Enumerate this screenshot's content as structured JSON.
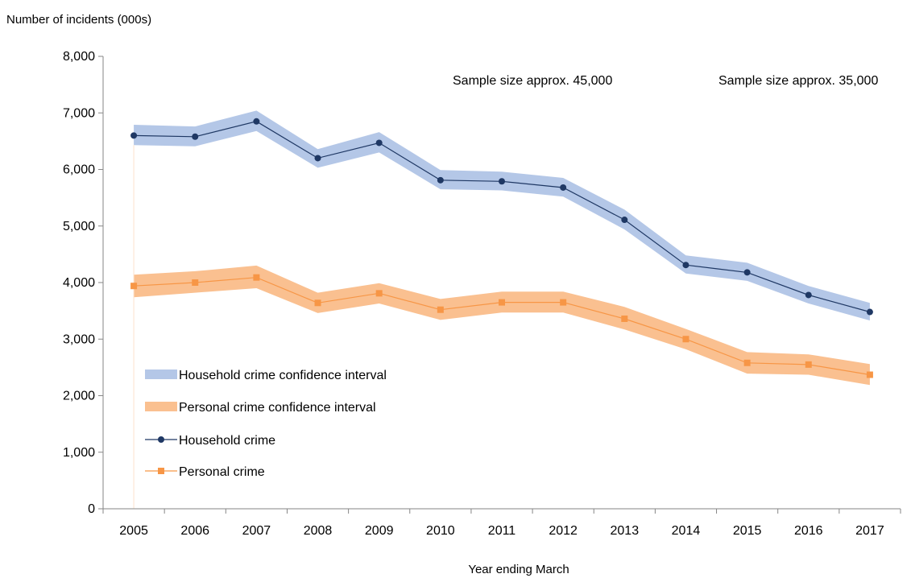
{
  "chart_data": {
    "type": "line",
    "ylabel": "Number of incidents (000s)",
    "xlabel": "Year ending  March",
    "ylim": [
      0,
      8000
    ],
    "yticks": [
      0,
      1000,
      2000,
      3000,
      4000,
      5000,
      6000,
      7000,
      8000
    ],
    "ytick_labels": [
      "0",
      "1,000",
      "2,000",
      "3,000",
      "4,000",
      "5,000",
      "6,000",
      "7,000",
      "8,000"
    ],
    "categories": [
      "2005",
      "2006",
      "2007",
      "2008",
      "2009",
      "2010",
      "2011",
      "2012",
      "2013",
      "2014",
      "2015",
      "2016",
      "2017"
    ],
    "grid": false,
    "legend_placement": "lower-left",
    "annotations": [
      {
        "text": "Sample size approx. 45,000"
      },
      {
        "text": "Sample size approx. 35,000"
      }
    ],
    "series": [
      {
        "name": "Household crime",
        "color": "#1f3864",
        "marker": "circle",
        "values": [
          6600,
          6580,
          6850,
          6200,
          6470,
          5810,
          5790,
          5680,
          5110,
          4310,
          4180,
          3780,
          3480
        ]
      },
      {
        "name": "Personal crime",
        "color": "#f79646",
        "marker": "square",
        "values": [
          3940,
          4000,
          4090,
          3640,
          3810,
          3520,
          3650,
          3650,
          3360,
          3000,
          2580,
          2550,
          2370
        ]
      }
    ],
    "bands": [
      {
        "name": "Household crime confidence interval",
        "color": "#b4c7e7",
        "lower": [
          6430,
          6410,
          6680,
          6030,
          6300,
          5650,
          5630,
          5520,
          4940,
          4160,
          4030,
          3630,
          3330
        ],
        "upper": [
          6790,
          6760,
          7040,
          6360,
          6660,
          5990,
          5960,
          5850,
          5290,
          4480,
          4350,
          3940,
          3640
        ]
      },
      {
        "name": "Personal crime confidence interval",
        "color": "#fac090",
        "lower": [
          3740,
          3820,
          3900,
          3460,
          3630,
          3340,
          3470,
          3470,
          3170,
          2820,
          2390,
          2370,
          2190
        ],
        "upper": [
          4140,
          4200,
          4300,
          3820,
          3990,
          3710,
          3840,
          3840,
          3570,
          3180,
          2770,
          2730,
          2560
        ]
      }
    ]
  }
}
